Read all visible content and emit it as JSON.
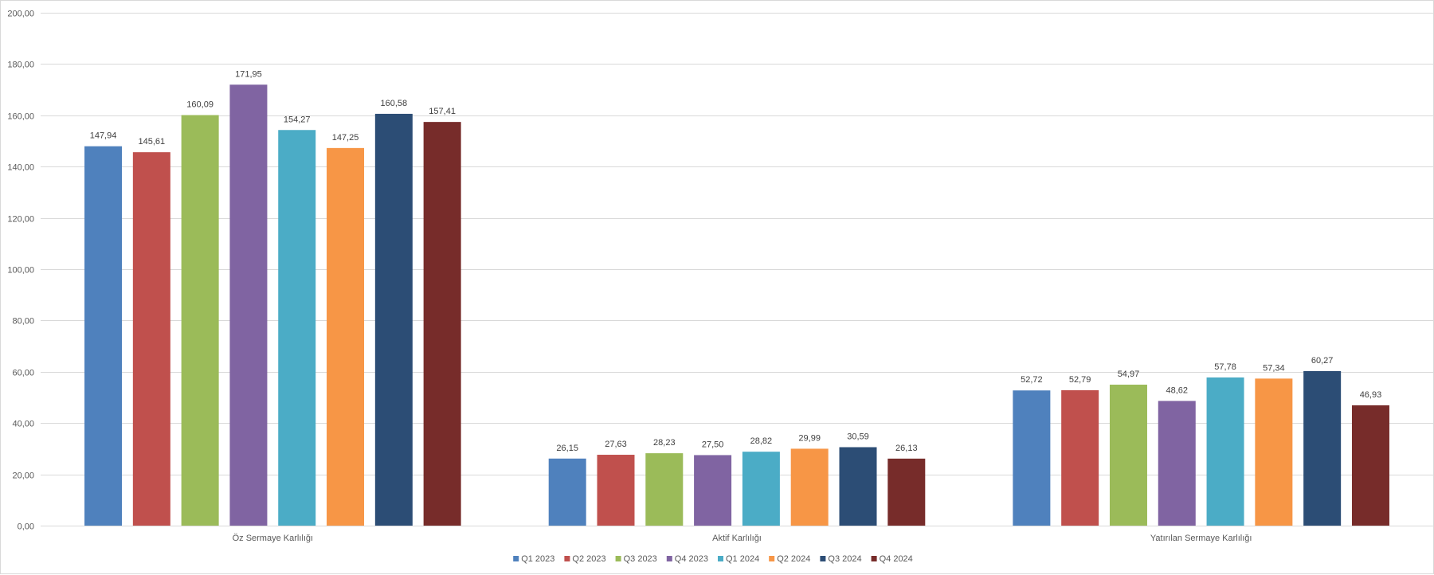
{
  "chart_data": {
    "type": "bar",
    "categories": [
      "Öz Sermaye Karlılığı",
      "Aktif Karlılığı",
      "Yatırılan Sermaye Karlılığı"
    ],
    "series": [
      {
        "name": "Q1 2023",
        "color": "#4f81bd",
        "values": [
          147.94,
          26.15,
          52.72
        ],
        "labels": [
          "147,94",
          "26,15",
          "52,72"
        ]
      },
      {
        "name": "Q2 2023",
        "color": "#c0504d",
        "values": [
          145.61,
          27.63,
          52.79
        ],
        "labels": [
          "145,61",
          "27,63",
          "52,79"
        ]
      },
      {
        "name": "Q3 2023",
        "color": "#9bbb59",
        "values": [
          160.09,
          28.23,
          54.97
        ],
        "labels": [
          "160,09",
          "28,23",
          "54,97"
        ]
      },
      {
        "name": "Q4 2023",
        "color": "#8064a2",
        "values": [
          171.95,
          27.5,
          48.62
        ],
        "labels": [
          "171,95",
          "27,50",
          "48,62"
        ]
      },
      {
        "name": "Q1 2024",
        "color": "#4bacc6",
        "values": [
          154.27,
          28.82,
          57.78
        ],
        "labels": [
          "154,27",
          "28,82",
          "57,78"
        ]
      },
      {
        "name": "Q2 2024",
        "color": "#f79646",
        "values": [
          147.25,
          29.99,
          57.34
        ],
        "labels": [
          "147,25",
          "29,99",
          "57,34"
        ]
      },
      {
        "name": "Q3 2024",
        "color": "#2c4d75",
        "values": [
          160.58,
          30.59,
          60.27
        ],
        "labels": [
          "160,58",
          "30,59",
          "60,27"
        ]
      },
      {
        "name": "Q4 2024",
        "color": "#772c2a",
        "values": [
          157.41,
          26.13,
          46.93
        ],
        "labels": [
          "157,41",
          "26,13",
          "46,93"
        ]
      }
    ],
    "ylim": [
      0,
      200
    ],
    "yticks": [
      0,
      20,
      40,
      60,
      80,
      100,
      120,
      140,
      160,
      180,
      200
    ],
    "ytick_labels": [
      "0,00",
      "20,00",
      "40,00",
      "60,00",
      "80,00",
      "100,00",
      "120,00",
      "140,00",
      "160,00",
      "180,00",
      "200,00"
    ],
    "grid": true,
    "legend_position": "bottom",
    "gridline_color": "#d9d9d9"
  }
}
